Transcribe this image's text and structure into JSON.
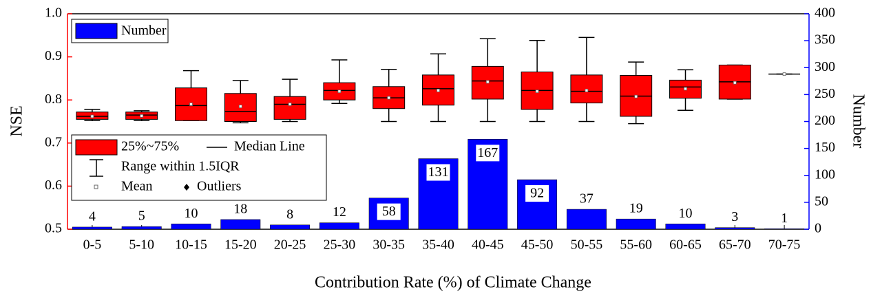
{
  "chart_data": {
    "type": "box",
    "xlabel": "Contribution Rate (%) of Climate Change",
    "ylabel": "NSE",
    "y2label": "Number",
    "categories": [
      "0-5",
      "5-10",
      "10-15",
      "15-20",
      "20-25",
      "25-30",
      "30-35",
      "35-40",
      "40-45",
      "45-50",
      "50-55",
      "55-60",
      "60-65",
      "65-70",
      "70-75"
    ],
    "box": {
      "name": "25%~75%",
      "color": "#ff0000",
      "min": [
        0.752,
        0.752,
        0.752,
        0.747,
        0.75,
        0.792,
        0.75,
        0.75,
        0.75,
        0.75,
        0.75,
        0.745,
        0.776,
        0.802,
        0.86
      ],
      "q1": [
        0.755,
        0.755,
        0.752,
        0.75,
        0.755,
        0.8,
        0.78,
        0.788,
        0.802,
        0.778,
        0.793,
        0.762,
        0.804,
        0.802,
        0.86
      ],
      "median": [
        0.762,
        0.765,
        0.787,
        0.773,
        0.79,
        0.822,
        0.805,
        0.826,
        0.844,
        0.822,
        0.82,
        0.809,
        0.83,
        0.842,
        0.86
      ],
      "q3": [
        0.772,
        0.772,
        0.828,
        0.815,
        0.808,
        0.84,
        0.831,
        0.858,
        0.878,
        0.865,
        0.858,
        0.857,
        0.846,
        0.881,
        0.86
      ],
      "max": [
        0.778,
        0.775,
        0.868,
        0.845,
        0.848,
        0.893,
        0.871,
        0.907,
        0.942,
        0.938,
        0.945,
        0.888,
        0.87,
        0.881,
        0.86
      ],
      "mean": [
        0.762,
        0.763,
        0.79,
        0.785,
        0.79,
        0.82,
        0.805,
        0.822,
        0.842,
        0.82,
        0.822,
        0.808,
        0.826,
        0.84,
        0.86
      ]
    },
    "bars": {
      "type": "bar",
      "name": "Number",
      "color": "#0000ff",
      "axis": "y2",
      "values": [
        4,
        5,
        10,
        18,
        8,
        12,
        58,
        131,
        167,
        92,
        37,
        19,
        10,
        3,
        1
      ]
    },
    "legend_items": {
      "median": "Median Line",
      "range": "Range within 1.5IQR",
      "mean": "Mean",
      "outliers": "Outliers"
    },
    "ylim": [
      0.5,
      1.0
    ],
    "yticks": [
      0.5,
      0.6,
      0.7,
      0.8,
      0.9,
      {
        "value": 1.0,
        "label": "1.0"
      }
    ],
    "y2lim": [
      0,
      400
    ],
    "y2ticks": [
      0,
      50,
      100,
      150,
      200,
      250,
      300,
      350,
      400
    ],
    "y_color": "#ff0000",
    "y2_color": "#0000ff"
  }
}
